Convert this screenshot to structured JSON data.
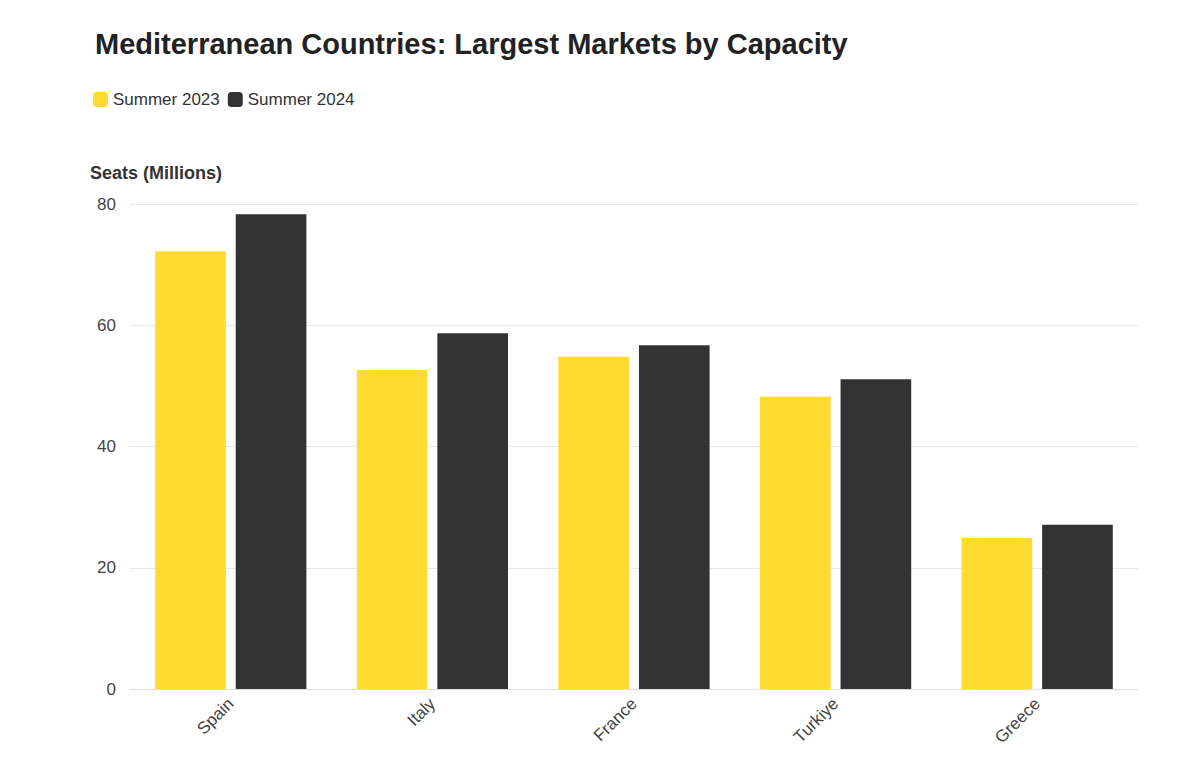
{
  "chart_data": {
    "type": "bar",
    "title": "Mediterranean Countries: Largest Markets by Capacity",
    "ylabel": "Seats (Millions)",
    "categories": [
      "Spain",
      "Italy",
      "France",
      "Turkiye",
      "Greece"
    ],
    "series": [
      {
        "name": "Summer 2023",
        "color": "#fedb2e",
        "values": [
          72.2,
          52.6,
          54.8,
          48.2,
          24.9
        ]
      },
      {
        "name": "Summer 2024",
        "color": "#333333",
        "values": [
          78.3,
          58.7,
          56.7,
          51.1,
          27.1
        ]
      }
    ],
    "ylim": [
      0,
      80
    ],
    "yticks": [
      0,
      20,
      40,
      60,
      80
    ],
    "grid": true,
    "legend": "top-left"
  }
}
